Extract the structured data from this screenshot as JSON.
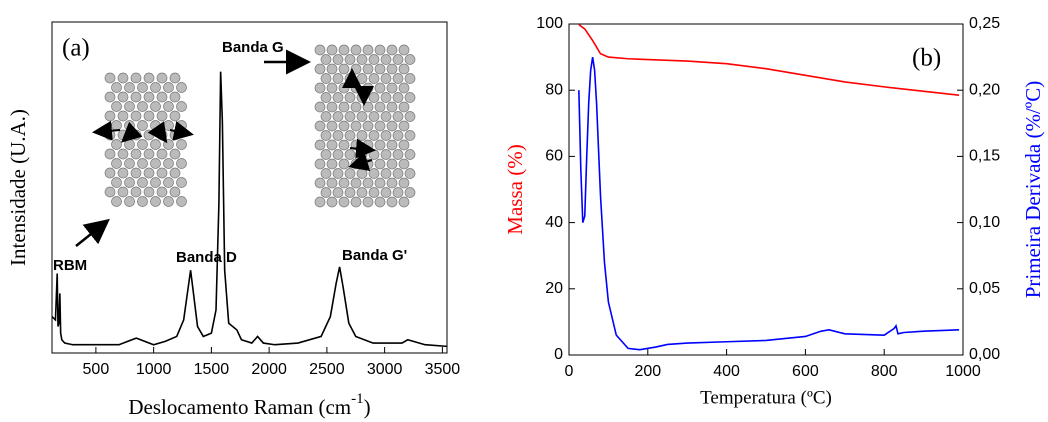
{
  "chart_data": [
    {
      "type": "line",
      "annotations": [
        "(a)",
        "Banda G",
        "Banda D",
        "RBM",
        "Banda G'"
      ],
      "xlabel": [
        "Deslocamento Raman (cm",
        "-1",
        ")"
      ],
      "ylabel": "Intensidade (U.A.)",
      "xlim": [
        120,
        3540
      ],
      "xticks": [
        500,
        1000,
        1500,
        2000,
        2500,
        3000,
        3500
      ],
      "ylim": [
        0,
        100
      ],
      "series": [
        {
          "color": "#000000",
          "x": [
            120,
            150,
            165,
            172,
            180,
            188,
            195,
            205,
            230,
            300,
            500,
            700,
            850,
            1000,
            1100,
            1200,
            1260,
            1300,
            1320,
            1345,
            1380,
            1430,
            1500,
            1540,
            1565,
            1580,
            1595,
            1615,
            1650,
            1720,
            1760,
            1850,
            1900,
            1950,
            2050,
            2250,
            2450,
            2530,
            2580,
            2610,
            2640,
            2690,
            2750,
            2900,
            3150,
            3200,
            3350,
            3540
          ],
          "values": [
            11,
            10,
            24,
            8,
            9,
            18,
            6,
            4,
            3,
            2.5,
            2.5,
            2.5,
            4.5,
            2.5,
            3.5,
            5,
            10,
            20,
            25,
            18,
            8,
            5,
            6,
            13,
            45,
            85,
            70,
            25,
            9,
            7,
            4,
            3,
            5,
            3,
            2.5,
            3,
            5,
            11,
            21,
            26,
            20,
            9,
            5,
            3,
            3,
            4,
            2.5,
            2
          ]
        }
      ]
    },
    {
      "type": "line",
      "annotations": [
        "(b)"
      ],
      "xlabel": "Temperatura (ºC)",
      "ylabel": "Massa (%)",
      "y2label": "Primeira Derivada (%/ºC)",
      "xlim": [
        0,
        1000
      ],
      "xticks": [
        0,
        200,
        400,
        600,
        800,
        1000
      ],
      "ylim": [
        0,
        100
      ],
      "yticks": [
        0,
        20,
        40,
        60,
        80,
        100
      ],
      "y2lim": [
        0,
        0.25
      ],
      "y2ticks": [
        {
          "value": 0,
          "label": "0,00"
        },
        {
          "value": 0.05,
          "label": "0,05"
        },
        {
          "value": 0.1,
          "label": "0,10"
        },
        {
          "value": 0.15,
          "label": "0,15"
        },
        {
          "value": 0.2,
          "label": "0,20"
        },
        {
          "value": 0.25,
          "label": "0,25"
        }
      ],
      "series": [
        {
          "color": "#ff0000",
          "x": [
            25,
            40,
            60,
            80,
            100,
            150,
            300,
            400,
            500,
            600,
            700,
            800,
            990
          ],
          "values": [
            99.8,
            98.5,
            95,
            91,
            90,
            89.5,
            88.8,
            88,
            86.5,
            84.5,
            82.5,
            81,
            78.5
          ]
        },
        {
          "color": "#0000ff",
          "axis": "y2",
          "x": [
            25,
            30,
            35,
            40,
            45,
            50,
            55,
            60,
            65,
            70,
            80,
            90,
            100,
            120,
            150,
            180,
            220,
            250,
            300,
            400,
            500,
            600,
            640,
            660,
            700,
            800,
            825,
            830,
            835,
            850,
            900,
            990
          ],
          "values": [
            0.2,
            0.14,
            0.1,
            0.105,
            0.15,
            0.19,
            0.215,
            0.225,
            0.215,
            0.19,
            0.12,
            0.07,
            0.04,
            0.015,
            0.005,
            0.004,
            0.006,
            0.008,
            0.009,
            0.01,
            0.011,
            0.014,
            0.018,
            0.019,
            0.016,
            0.015,
            0.02,
            0.022,
            0.016,
            0.017,
            0.018,
            0.019
          ]
        }
      ]
    }
  ]
}
